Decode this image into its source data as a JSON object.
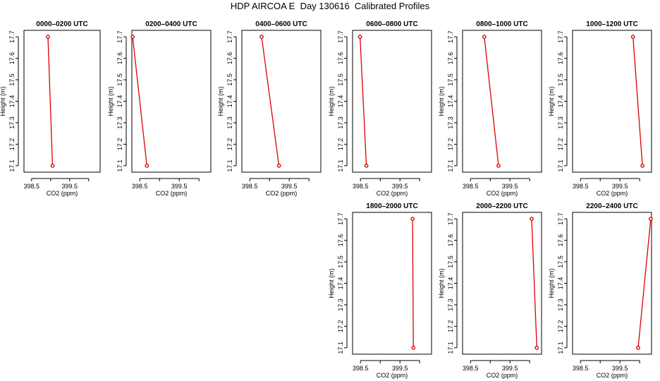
{
  "page_title": "HDP AIRCOA E  Day 130616  Calibrated Profiles",
  "colors": {
    "line": "#dd0000",
    "axis": "#000000",
    "background": "#ffffff"
  },
  "chart_data": [
    {
      "type": "line",
      "title": "0000–0200 UTC",
      "xlabel": "CO2 (ppm)",
      "ylabel": "Height (m)",
      "xlim": [
        398.3,
        400.3
      ],
      "ylim": [
        17.07,
        17.73
      ],
      "xticks": [
        "398.5",
        "399.5"
      ],
      "yticks": [
        "17.1",
        "17.2",
        "17.3",
        "17.4",
        "17.5",
        "17.6",
        "17.7"
      ],
      "x": [
        398.93,
        399.05
      ],
      "y": [
        17.7,
        17.1
      ]
    },
    {
      "type": "line",
      "title": "0200–0400 UTC",
      "xlabel": "CO2 (ppm)",
      "ylabel": "Height (m)",
      "xlim": [
        398.3,
        400.3
      ],
      "ylim": [
        17.07,
        17.73
      ],
      "xticks": [
        "398.5",
        "399.5"
      ],
      "yticks": [
        "17.1",
        "17.2",
        "17.3",
        "17.4",
        "17.5",
        "17.6",
        "17.7"
      ],
      "x": [
        398.32,
        398.68
      ],
      "y": [
        17.7,
        17.1
      ]
    },
    {
      "type": "line",
      "title": "0400–0600 UTC",
      "xlabel": "CO2 (ppm)",
      "ylabel": "Height (m)",
      "xlim": [
        398.3,
        400.3
      ],
      "ylim": [
        17.07,
        17.73
      ],
      "xticks": [
        "398.5",
        "399.5"
      ],
      "yticks": [
        "17.1",
        "17.2",
        "17.3",
        "17.4",
        "17.5",
        "17.6",
        "17.7"
      ],
      "x": [
        398.8,
        399.24
      ],
      "y": [
        17.7,
        17.1
      ]
    },
    {
      "type": "line",
      "title": "0600–0800 UTC",
      "xlabel": "CO2 (ppm)",
      "ylabel": "Height (m)",
      "xlim": [
        398.3,
        400.3
      ],
      "ylim": [
        17.07,
        17.73
      ],
      "xticks": [
        "398.5",
        "399.5"
      ],
      "yticks": [
        "17.1",
        "17.2",
        "17.3",
        "17.4",
        "17.5",
        "17.6",
        "17.7"
      ],
      "x": [
        398.49,
        398.65
      ],
      "y": [
        17.7,
        17.1
      ]
    },
    {
      "type": "line",
      "title": "0800–1000 UTC",
      "xlabel": "CO2 (ppm)",
      "ylabel": "Height (m)",
      "xlim": [
        398.3,
        400.3
      ],
      "ylim": [
        17.07,
        17.73
      ],
      "xticks": [
        "398.5",
        "399.5"
      ],
      "yticks": [
        "17.1",
        "17.2",
        "17.3",
        "17.4",
        "17.5",
        "17.6",
        "17.7"
      ],
      "x": [
        398.85,
        399.21
      ],
      "y": [
        17.7,
        17.1
      ]
    },
    {
      "type": "line",
      "title": "1000–1200 UTC",
      "xlabel": "CO2 (ppm)",
      "ylabel": "Height (m)",
      "xlim": [
        398.3,
        400.3
      ],
      "ylim": [
        17.07,
        17.73
      ],
      "xticks": [
        "398.5",
        "399.5"
      ],
      "yticks": [
        "17.1",
        "17.2",
        "17.3",
        "17.4",
        "17.5",
        "17.6",
        "17.7"
      ],
      "x": [
        399.83,
        400.07
      ],
      "y": [
        17.7,
        17.1
      ]
    },
    {
      "type": "line",
      "title": "1800–2000 UTC",
      "xlabel": "CO2 (ppm)",
      "ylabel": "Height (m)",
      "xlim": [
        398.3,
        400.3
      ],
      "ylim": [
        17.07,
        17.73
      ],
      "xticks": [
        "398.5",
        "399.5"
      ],
      "yticks": [
        "17.1",
        "17.2",
        "17.3",
        "17.4",
        "17.5",
        "17.6",
        "17.7"
      ],
      "x": [
        399.82,
        399.84
      ],
      "y": [
        17.7,
        17.1
      ]
    },
    {
      "type": "line",
      "title": "2000–2200 UTC",
      "xlabel": "CO2 (ppm)",
      "ylabel": "Height (m)",
      "xlim": [
        398.3,
        400.3
      ],
      "ylim": [
        17.07,
        17.73
      ],
      "xticks": [
        "398.5",
        "399.5"
      ],
      "yticks": [
        "17.1",
        "17.2",
        "17.3",
        "17.4",
        "17.5",
        "17.6",
        "17.7"
      ],
      "x": [
        400.05,
        400.18
      ],
      "y": [
        17.7,
        17.1
      ]
    },
    {
      "type": "line",
      "title": "2200–2400 UTC",
      "xlabel": "CO2 (ppm)",
      "ylabel": "Height (m)",
      "xlim": [
        398.3,
        400.3
      ],
      "ylim": [
        17.07,
        17.73
      ],
      "xticks": [
        "398.5",
        "399.5"
      ],
      "yticks": [
        "17.1",
        "17.2",
        "17.3",
        "17.4",
        "17.5",
        "17.6",
        "17.7"
      ],
      "x": [
        400.28,
        399.96
      ],
      "y": [
        17.7,
        17.1
      ]
    }
  ]
}
